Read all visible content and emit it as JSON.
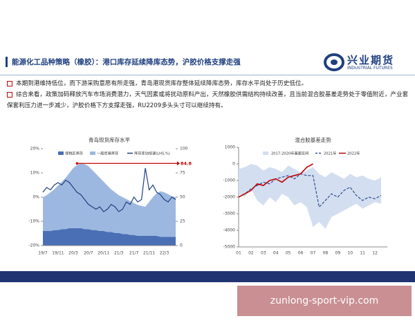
{
  "header": {
    "title": "能源化工品种策略（橡胶）：港口库存延续降库态势，沪胶价格支撑走强",
    "logo_cn": "兴业期货",
    "logo_en": "INDUSTRIAL FUTURES"
  },
  "bullets": [
    "本期到港维持低位，而下游采购意愿有所走强，青岛港现货库存整体延续降库态势，库存水平尚处于历史低位。",
    "综合来看，政策加码释放汽车市场消费潜力，天气因素或将扰动原料产出，天然橡胶供需结构持续改善，且当前混合胶基差走势处于零值附近，产业套保套利压力进一步减少，沪胶价格下方支撑走强，RU2209多头头寸可以继续持有。"
  ],
  "watermark": "zunlong-sport-vip.com",
  "chart_data": [
    {
      "type": "area",
      "title": "青岛现货库存水平",
      "categories": [
        "19/7",
        null,
        null,
        null,
        "19/11",
        null,
        null,
        null,
        "20/3",
        null,
        null,
        null,
        "20/7",
        null,
        null,
        null,
        "20/11",
        null,
        null,
        null,
        "21/3",
        null,
        null,
        null,
        "21/7",
        null,
        null,
        null,
        "21/11",
        null,
        null,
        null,
        "22/3",
        null,
        null,
        null
      ],
      "series": [
        {
          "name": "保税区库存",
          "color": "#4a6fb5",
          "axis": "y2",
          "stacked": true,
          "values": [
            15,
            15,
            15,
            16,
            16,
            17,
            17,
            18,
            18,
            18,
            18,
            17,
            17,
            16,
            16,
            15,
            15,
            14,
            14,
            13,
            13,
            12,
            12,
            11,
            11,
            10,
            10,
            10,
            10,
            10,
            10,
            9,
            9,
            9,
            9,
            9
          ]
        },
        {
          "name": "一般贸易库存",
          "color": "#9db8e0",
          "axis": "y2",
          "stacked": true,
          "values": [
            35,
            37,
            40,
            42,
            46,
            49,
            53,
            57,
            62,
            65,
            67,
            67,
            65,
            62,
            58,
            55,
            51,
            48,
            44,
            42,
            39,
            38,
            36,
            35,
            33,
            32,
            31,
            30,
            35,
            40,
            44,
            47,
            46,
            44,
            42,
            41
          ]
        },
        {
          "name": "库存变动增速(LHS,%)",
          "color": "#1f3f7f",
          "axis": "y",
          "values": [
            2,
            4,
            3,
            5,
            6,
            5,
            7,
            6,
            4,
            2,
            1,
            -1,
            -3,
            -4,
            -5,
            -4,
            -6,
            -5,
            -3,
            -4,
            -6,
            -5,
            -2,
            -3,
            0,
            -2,
            -1,
            12,
            3,
            5,
            2,
            1,
            -1,
            -2,
            0,
            -1
          ]
        }
      ],
      "ylim": [
        -20,
        20
      ],
      "yticks": [
        {
          "value": -20,
          "label": "-20%"
        },
        {
          "value": -10,
          "label": "-10%"
        },
        {
          "value": 0,
          "label": "0%"
        },
        {
          "value": 10,
          "label": "10%"
        },
        {
          "value": 20,
          "label": "20%"
        }
      ],
      "y2lim": [
        0,
        100
      ],
      "y2ticks": [
        0,
        25,
        50,
        75,
        100
      ],
      "reference_line": {
        "value": 84.8,
        "axis": "y2",
        "color": "#c00000"
      }
    },
    {
      "type": "line",
      "title": "混合胶基差走势",
      "x": [
        1,
        1.5,
        2,
        2.5,
        3,
        3.5,
        4,
        4.5,
        5,
        5.5,
        6,
        6.5,
        7,
        7.5,
        8,
        8.5,
        9,
        9.5,
        10,
        10.5,
        11,
        11.5,
        12,
        12.5
      ],
      "xlim": [
        1,
        13
      ],
      "xticks": [
        {
          "value": 1,
          "label": "01"
        },
        {
          "value": 2,
          "label": "02"
        },
        {
          "value": 3,
          "label": "03"
        },
        {
          "value": 4,
          "label": "04"
        },
        {
          "value": 5,
          "label": "05"
        },
        {
          "value": 6,
          "label": "06"
        },
        {
          "value": 7,
          "label": "07"
        },
        {
          "value": 8,
          "label": "08"
        },
        {
          "value": 9,
          "label": "09"
        },
        {
          "value": 10,
          "label": "10"
        },
        {
          "value": 11,
          "label": "11"
        },
        {
          "value": 12,
          "label": "12"
        }
      ],
      "ylim": [
        -5000,
        1000
      ],
      "yticks": [
        1000,
        0,
        -1000,
        -2000,
        -3000,
        -4000,
        -5000
      ],
      "series": [
        {
          "name": "2017-2020年基差区间",
          "color": "#d3def0",
          "type": "band",
          "high": [
            -300,
            -200,
            0,
            -100,
            -400,
            -200,
            -300,
            -500,
            -100,
            -300,
            -500,
            -400,
            -200,
            -600,
            -800,
            -500,
            -700,
            -900,
            -600,
            -800,
            -700,
            -900,
            -1000,
            -800
          ],
          "low": [
            -1800,
            -2000,
            -1500,
            -2200,
            -2500,
            -2000,
            -2300,
            -1800,
            -2000,
            -2500,
            -2300,
            -2600,
            -3800,
            -3500,
            -3900,
            -3200,
            -3000,
            -2800,
            -2600,
            -2400,
            -2700,
            -2500,
            -2300,
            -2400
          ]
        },
        {
          "name": "2021年",
          "color": "#2f4e8f",
          "dashed": true,
          "values": [
            -2000,
            -1800,
            -1500,
            -1300,
            -1100,
            -1200,
            -900,
            -800,
            -700,
            -900,
            -600,
            -700,
            -700,
            -2600,
            -2200,
            -1800,
            -2000,
            -1600,
            -1400,
            -1900,
            -2200,
            -2000,
            -2100,
            -1900
          ]
        },
        {
          "name": "2022年",
          "color": "#c00000",
          "values": [
            -2000,
            -1800,
            -1600,
            -1200,
            -1300,
            -1000,
            -900,
            -1100,
            -800,
            -700,
            -600,
            -200,
            0,
            null,
            null,
            null,
            null,
            null,
            null,
            null,
            null,
            null,
            null,
            null
          ]
        }
      ]
    }
  ]
}
